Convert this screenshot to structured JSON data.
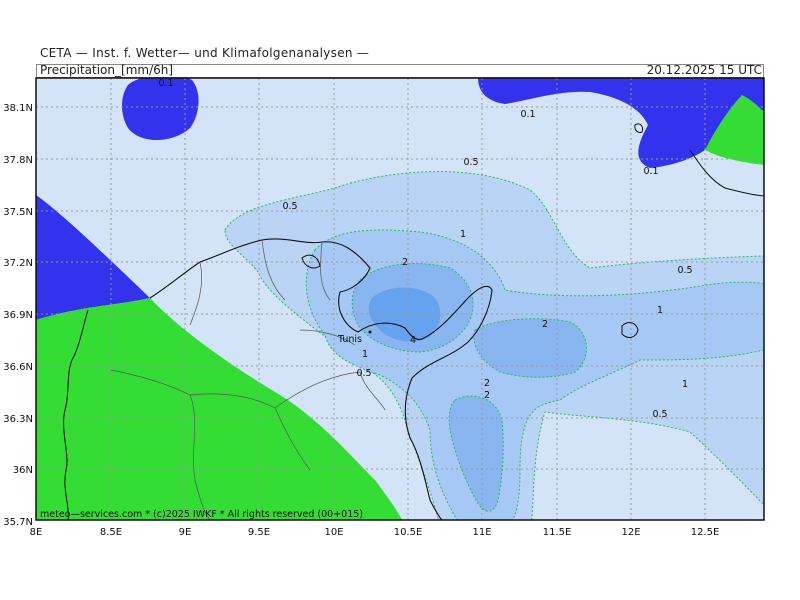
{
  "header": {
    "source": "CETA — Inst. f. Wetter— und Klimafolgenanalysen —",
    "variable": "Precipitation_[mm/6h]",
    "valid_time": "20.12.2025 15 UTC"
  },
  "footer": {
    "copyright": "meteo—services.com * (c)2025 IWKF * All rights reserved (00+015)"
  },
  "map": {
    "city_label": "Tunis",
    "lon_ticks": [
      "8E",
      "8.5E",
      "9E",
      "9.5E",
      "10E",
      "10.5E",
      "11E",
      "11.5E",
      "12E",
      "12.5E"
    ],
    "lat_ticks": [
      "38.1N",
      "37.8N",
      "37.5N",
      "37.2N",
      "36.9N",
      "36.6N",
      "36.3N",
      "36N",
      "35.7N"
    ],
    "contour_labels": [
      "0.1",
      "0.1",
      "0.1",
      "0.5",
      "0.5",
      "0.5",
      "0.5",
      "0.5",
      "1",
      "1",
      "1",
      "1",
      "2",
      "2",
      "2",
      "2",
      "4"
    ],
    "colors": {
      "lt_0_1_blue": "#3333ee",
      "lt_0_1_green": "#33dd33",
      "c_0_1": "#d3e3f8",
      "c_0_5": "#bad4f5",
      "c_1": "#a6c8f4",
      "c_2": "#89b6f1",
      "c_4": "#66a3ee"
    }
  }
}
